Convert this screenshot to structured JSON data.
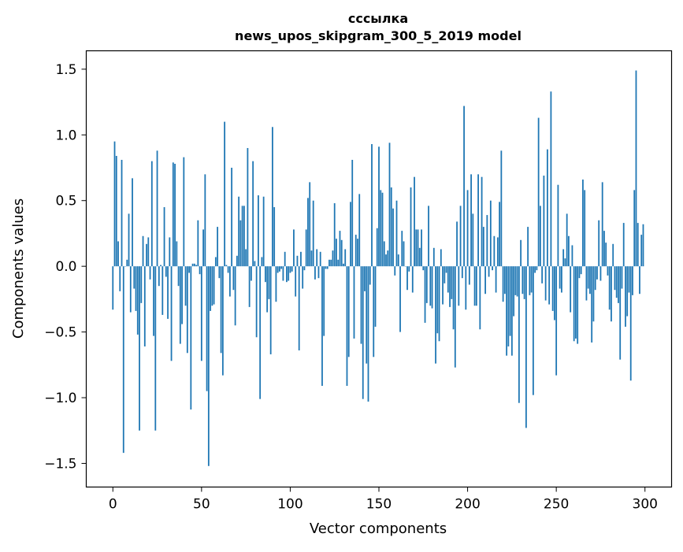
{
  "chart_data": {
    "type": "bar",
    "title": [
      "сссылка",
      "news_upos_skipgram_300_5_2019 model"
    ],
    "xlabel": "Vector components",
    "ylabel": "Components values",
    "xlim": [
      -15,
      315
    ],
    "ylim": [
      -1.68,
      1.64
    ],
    "xticks": [
      0,
      50,
      100,
      150,
      200,
      250,
      300
    ],
    "xtick_labels": [
      "0",
      "50",
      "100",
      "150",
      "200",
      "250",
      "300"
    ],
    "yticks": [
      1.5,
      1.0,
      0.5,
      0.0,
      -0.5,
      -1.0,
      -1.5
    ],
    "ytick_labels": [
      "1.5",
      "1.0",
      "0.5",
      "0.0",
      "−0.5",
      "−1.0",
      "−1.5"
    ],
    "bar_color": "#1f77b4",
    "grid": false,
    "x": "0..299 (vector component index)",
    "values": [
      -0.33,
      0.95,
      0.84,
      0.19,
      -0.19,
      0.81,
      -1.42,
      0.0,
      0.05,
      0.4,
      -0.35,
      0.67,
      -0.17,
      -0.34,
      -0.52,
      -1.25,
      -0.28,
      0.23,
      -0.61,
      0.17,
      0.22,
      -0.1,
      0.8,
      -0.53,
      -1.25,
      0.88,
      -0.15,
      0.01,
      -0.37,
      0.45,
      -0.08,
      -0.4,
      0.22,
      -0.72,
      0.79,
      0.78,
      0.19,
      -0.15,
      -0.59,
      -0.44,
      0.83,
      -0.3,
      -0.66,
      -0.05,
      -1.09,
      0.02,
      0.02,
      0.01,
      0.35,
      -0.06,
      -0.72,
      0.28,
      0.7,
      -0.95,
      -1.52,
      -0.34,
      -0.3,
      -0.29,
      0.07,
      0.3,
      -0.09,
      -0.66,
      -0.83,
      1.1,
      0.01,
      -0.05,
      -0.23,
      0.75,
      -0.18,
      -0.45,
      0.08,
      0.53,
      0.35,
      0.46,
      0.46,
      0.13,
      0.9,
      -0.31,
      -0.11,
      0.8,
      0.04,
      -0.54,
      0.54,
      -1.01,
      0.07,
      0.53,
      -0.12,
      -0.35,
      -0.25,
      -0.67,
      1.06,
      0.45,
      -0.27,
      -0.05,
      -0.04,
      -0.02,
      -0.11,
      0.11,
      -0.12,
      -0.11,
      -0.05,
      -0.04,
      0.28,
      -0.23,
      0.08,
      -0.64,
      0.11,
      -0.17,
      -0.03,
      0.28,
      0.52,
      0.64,
      0.12,
      0.5,
      -0.1,
      0.13,
      -0.09,
      0.11,
      -0.91,
      -0.53,
      -0.02,
      -0.02,
      0.05,
      0.05,
      0.12,
      0.48,
      0.21,
      0.05,
      0.27,
      0.2,
      0.02,
      0.13,
      -0.91,
      -0.69,
      0.49,
      0.81,
      -0.55,
      0.24,
      0.21,
      0.55,
      -0.59,
      -1.01,
      -0.19,
      -0.74,
      -1.03,
      -0.14,
      0.93,
      -0.69,
      -0.46,
      0.29,
      0.91,
      0.58,
      0.56,
      0.19,
      0.09,
      0.12,
      0.94,
      0.6,
      0.44,
      -0.07,
      0.5,
      0.09,
      -0.5,
      0.27,
      0.19,
      0.0,
      -0.18,
      -0.04,
      0.6,
      -0.2,
      0.68,
      0.28,
      0.28,
      0.14,
      0.28,
      -0.03,
      -0.43,
      -0.28,
      0.46,
      -0.3,
      -0.32,
      0.14,
      -0.74,
      -0.51,
      -0.57,
      0.13,
      -0.29,
      -0.13,
      -0.05,
      -0.2,
      -0.31,
      -0.25,
      -0.48,
      -0.77,
      0.34,
      -0.3,
      0.46,
      -0.09,
      1.22,
      -0.33,
      0.58,
      -0.14,
      0.7,
      0.4,
      -0.3,
      -0.3,
      0.7,
      -0.48,
      0.68,
      0.3,
      -0.21,
      0.39,
      -0.08,
      0.5,
      -0.03,
      0.23,
      -0.2,
      0.22,
      0.49,
      0.88,
      -0.27,
      -0.21,
      -0.68,
      -0.61,
      -0.53,
      -0.68,
      -0.38,
      -0.22,
      -0.23,
      -1.04,
      0.2,
      -0.21,
      -0.25,
      -1.23,
      0.3,
      -0.22,
      -0.2,
      -0.98,
      -0.05,
      -0.03,
      1.13,
      0.46,
      -0.13,
      0.69,
      -0.26,
      0.89,
      -0.29,
      1.33,
      -0.34,
      -0.41,
      -0.83,
      0.62,
      -0.17,
      -0.2,
      0.13,
      0.06,
      0.4,
      0.23,
      -0.35,
      0.16,
      -0.57,
      -0.55,
      -0.59,
      -0.09,
      -0.06,
      0.66,
      0.58,
      -0.26,
      -0.17,
      -0.21,
      -0.58,
      -0.42,
      -0.18,
      -0.1,
      0.35,
      -0.11,
      0.64,
      0.27,
      0.18,
      -0.07,
      -0.33,
      -0.42,
      0.17,
      -0.18,
      -0.24,
      -0.28,
      -0.71,
      -0.17,
      0.33,
      -0.46,
      -0.38,
      -0.2,
      -0.87,
      -0.22,
      0.58,
      1.49,
      0.33,
      -0.21,
      0.24,
      0.32
    ]
  }
}
